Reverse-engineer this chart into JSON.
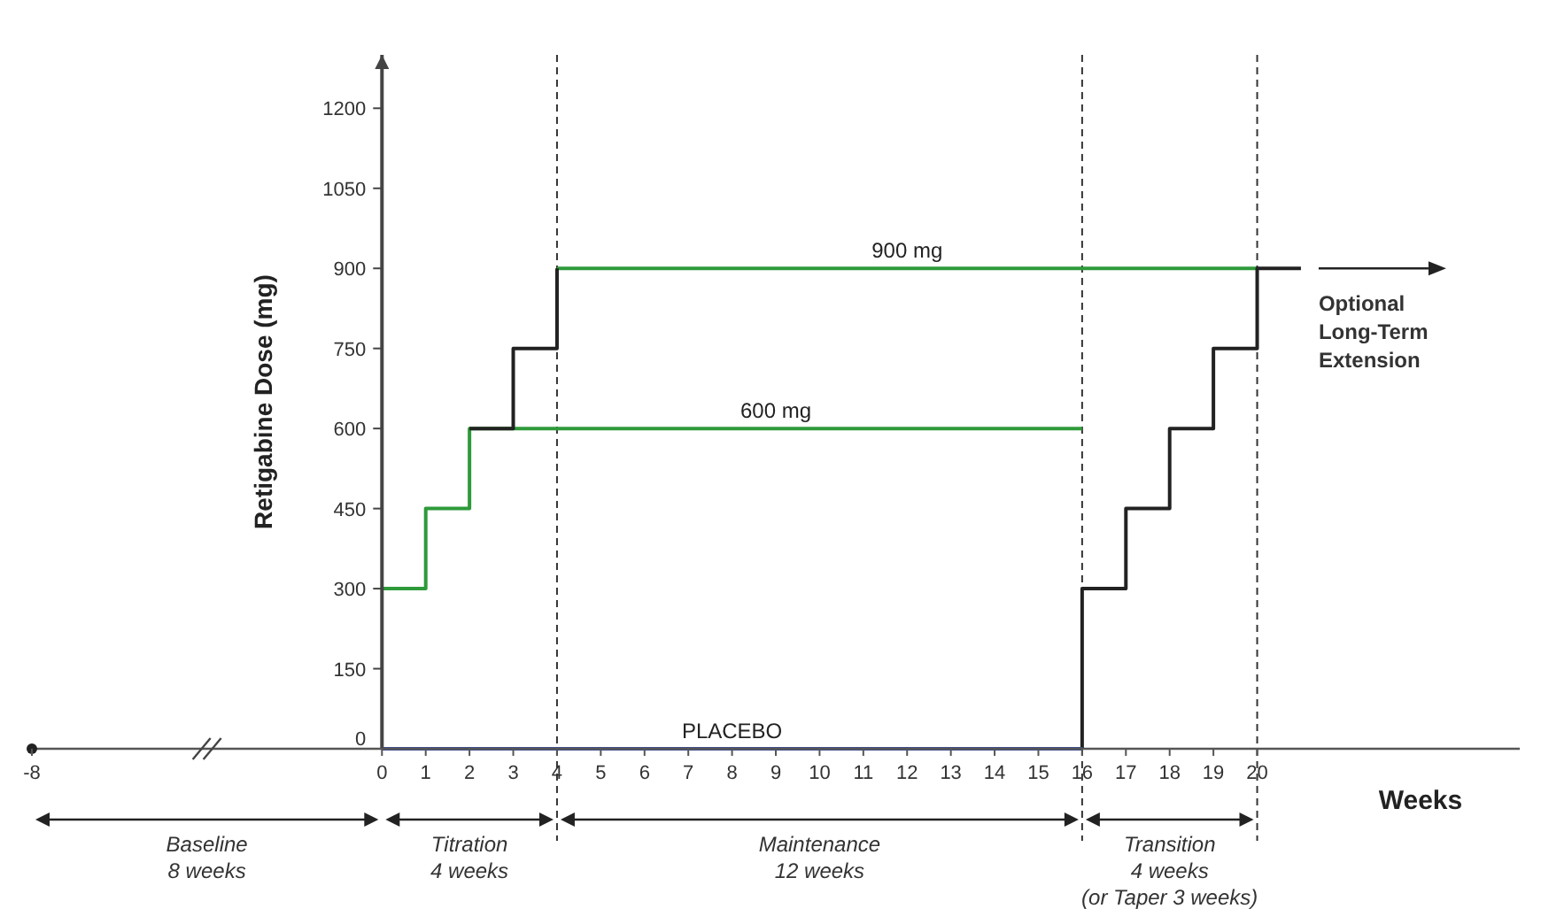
{
  "chart_data": {
    "type": "step",
    "ylabel": "Retigabine Dose (mg)",
    "xlabel": "Weeks",
    "xlim": [
      -8,
      26
    ],
    "xticks": [
      -8,
      0,
      1,
      2,
      3,
      4,
      5,
      6,
      7,
      8,
      9,
      10,
      11,
      12,
      13,
      14,
      15,
      16,
      17,
      18,
      19,
      20
    ],
    "ylim": [
      0,
      1300
    ],
    "yticks": [
      0,
      150,
      300,
      450,
      600,
      750,
      900,
      1050,
      1200
    ],
    "grid": false,
    "series": [
      {
        "name": "600 mg",
        "color": "#2e9a3a",
        "x": [
          0,
          1,
          2,
          16
        ],
        "values": [
          300,
          450,
          600,
          600
        ]
      },
      {
        "name": "900 mg",
        "color": "#2e9a3a",
        "x": [
          4,
          20
        ],
        "values": [
          900,
          900
        ]
      },
      {
        "color": "#222222",
        "x": [
          2,
          3,
          4
        ],
        "values": [
          600,
          750,
          900
        ]
      },
      {
        "color": "#222222",
        "x": [
          16,
          16,
          17,
          18,
          19,
          20,
          21
        ],
        "values": [
          0,
          300,
          450,
          600,
          750,
          900,
          900
        ]
      },
      {
        "name": "PLACEBO",
        "color": "#3a4f9a",
        "x": [
          0,
          16
        ],
        "values": [
          0,
          0
        ]
      }
    ],
    "ref_lines": [
      {
        "axis": "x",
        "value": 4,
        "line_style": "dashed",
        "color": "#333333"
      },
      {
        "axis": "x",
        "value": 16,
        "line_style": "dashed",
        "color": "#333333"
      },
      {
        "axis": "x",
        "value": 20,
        "line_style": "dashed",
        "color": "#333333"
      }
    ],
    "annotations": [
      "Baseline\n8 weeks",
      "Titration\n4 weeks",
      "Maintenance\n12 weeks",
      "Transition\n4 weeks\n(or Taper 3 weeks)",
      "Optional\nLong-Term\nExtension"
    ]
  }
}
